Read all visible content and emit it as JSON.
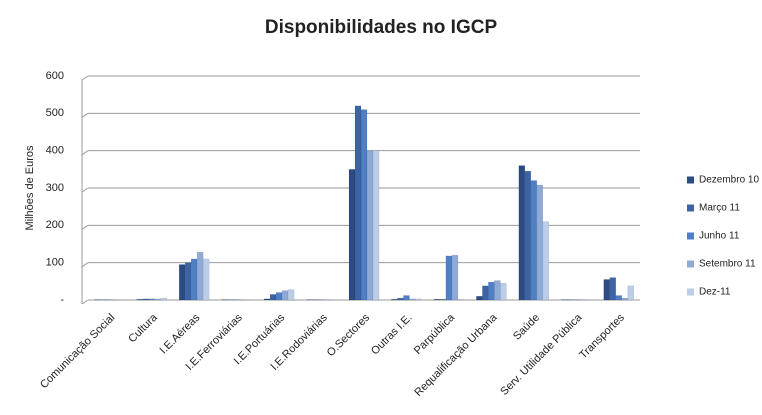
{
  "chart_data": {
    "type": "bar",
    "title": "Disponibilidades no IGCP",
    "y_label": "Milhões de Euros",
    "categories": [
      "Comunicação Social",
      "Cultura",
      "I.E.Aéreas",
      "I.E.Ferroviárias",
      "I.E.Portuárias",
      "I.E.Rodoviárias",
      "O.Sectores",
      "Outras I.E.",
      "Parpública",
      "Requalificação Urbana",
      "Saúde",
      "Serv. Utilidade Pública",
      "Transportes"
    ],
    "series": [
      {
        "name": "Dezembro 10",
        "color": "#2c4b82",
        "values": [
          1,
          2,
          95,
          1,
          3,
          1,
          350,
          2,
          2,
          10,
          360,
          1,
          55
        ]
      },
      {
        "name": "Março 11",
        "color": "#3b63a6",
        "values": [
          1,
          3,
          100,
          1,
          15,
          1,
          520,
          5,
          2,
          38,
          345,
          1,
          60
        ]
      },
      {
        "name": "Junho 11",
        "color": "#4f7fc4",
        "values": [
          1,
          3,
          110,
          1,
          20,
          1,
          510,
          12,
          118,
          48,
          320,
          1,
          12
        ]
      },
      {
        "name": "Setembro 11",
        "color": "#8eaad6",
        "values": [
          1,
          3,
          128,
          1,
          25,
          1,
          400,
          3,
          120,
          52,
          308,
          1,
          5
        ]
      },
      {
        "name": "Dez-11",
        "color": "#bccde8",
        "values": [
          1,
          5,
          110,
          1,
          28,
          1,
          400,
          3,
          2,
          45,
          210,
          1,
          38
        ]
      }
    ],
    "ylim": [
      0,
      600
    ],
    "yticks": [
      {
        "value": 0,
        "label": "-"
      },
      100,
      200,
      300,
      400,
      500,
      600
    ],
    "grid": true,
    "legend": "right"
  }
}
